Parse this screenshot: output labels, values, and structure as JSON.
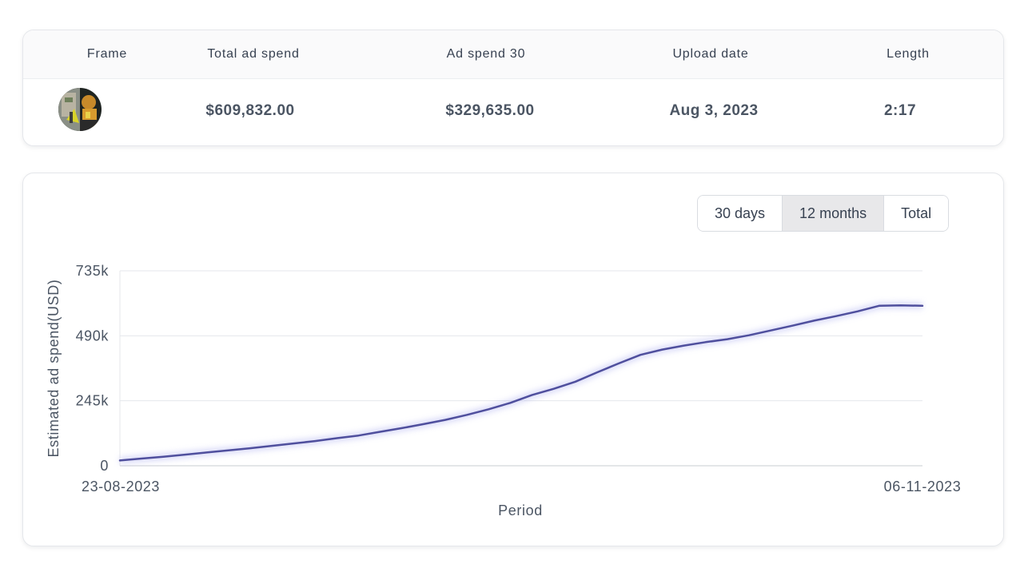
{
  "table": {
    "headers": {
      "frame": "Frame",
      "total_ad_spend": "Total ad spend",
      "ad_spend_30": "Ad spend 30",
      "upload_date": "Upload date",
      "length": "Length"
    },
    "row": {
      "frame_icon": "video-thumbnail",
      "total_ad_spend": "$609,832.00",
      "ad_spend_30": "$329,635.00",
      "upload_date": "Aug 3, 2023",
      "length": "2:17"
    }
  },
  "range_selector": {
    "options": [
      "30 days",
      "12 months",
      "Total"
    ],
    "selected": "12 months"
  },
  "colors": {
    "line": "#4f4f9d",
    "grid": "#e5e7eb",
    "selected_bg": "#e8e8ea"
  },
  "chart_data": {
    "type": "line",
    "xlabel": "Period",
    "ylabel": "Estimated ad spend(USD)",
    "x_tick_labels": [
      "23-08-2023",
      "06-11-2023"
    ],
    "y_tick_labels": [
      "0",
      "245k",
      "490k",
      "735k"
    ],
    "ylim": [
      0,
      735000
    ],
    "grid": true,
    "x": [
      "23-08-2023",
      "25-08-2023",
      "27-08-2023",
      "29-08-2023",
      "31-08-2023",
      "02-09-2023",
      "04-09-2023",
      "06-09-2023",
      "08-09-2023",
      "10-09-2023",
      "12-09-2023",
      "14-09-2023",
      "16-09-2023",
      "18-09-2023",
      "20-09-2023",
      "22-09-2023",
      "24-09-2023",
      "26-09-2023",
      "28-09-2023",
      "30-09-2023",
      "02-10-2023",
      "04-10-2023",
      "06-10-2023",
      "08-10-2023",
      "10-10-2023",
      "12-10-2023",
      "14-10-2023",
      "16-10-2023",
      "18-10-2023",
      "20-10-2023",
      "22-10-2023",
      "24-10-2023",
      "26-10-2023",
      "28-10-2023",
      "30-10-2023",
      "01-11-2023",
      "03-11-2023",
      "06-11-2023"
    ],
    "series": [
      {
        "values": [
          20000,
          27000,
          34000,
          42000,
          50000,
          58000,
          66000,
          75000,
          84000,
          93000,
          104000,
          114000,
          128000,
          142000,
          157000,
          173000,
          192000,
          213000,
          237000,
          267000,
          290000,
          317000,
          352000,
          386000,
          418000,
          438000,
          453000,
          466000,
          477000,
          492000,
          510000,
          528000,
          547000,
          564000,
          582000,
          603000,
          605000,
          603000
        ]
      }
    ]
  }
}
